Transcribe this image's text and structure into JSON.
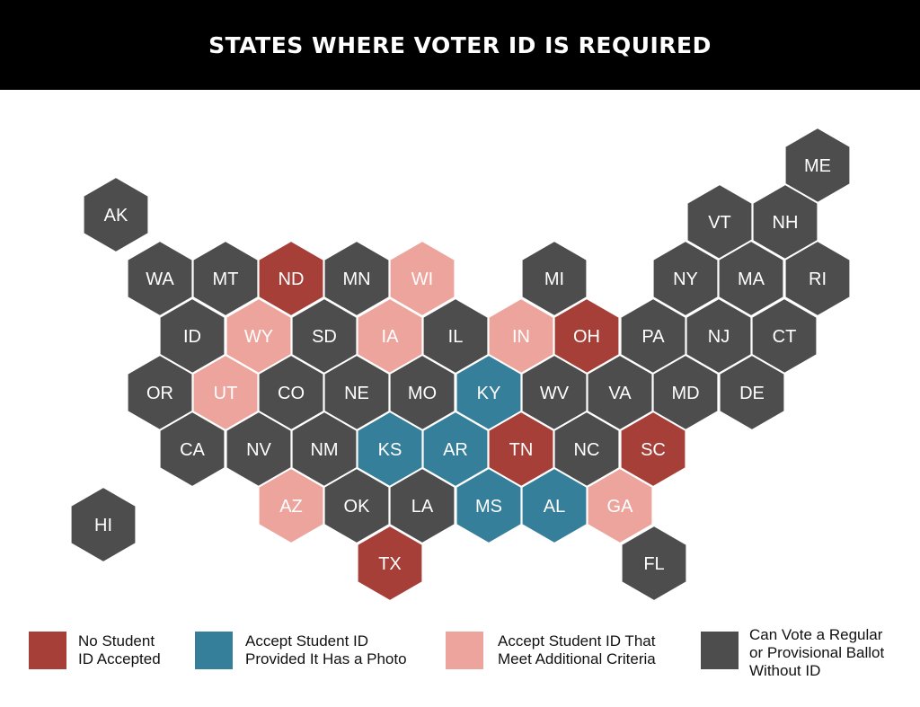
{
  "title": "STATES WHERE VOTER ID IS REQUIRED",
  "colors": {
    "no_student_id": "#a63f38",
    "student_id_photo": "#367f9a",
    "student_id_criteria": "#eda49c",
    "no_id_needed": "#4d4d4d",
    "header_bg": "#000000",
    "hex_border": "#ffffff"
  },
  "states": [
    {
      "code": "AK",
      "category": "no_id_needed"
    },
    {
      "code": "ME",
      "category": "no_id_needed"
    },
    {
      "code": "VT",
      "category": "no_id_needed"
    },
    {
      "code": "NH",
      "category": "no_id_needed"
    },
    {
      "code": "WA",
      "category": "no_id_needed"
    },
    {
      "code": "MT",
      "category": "no_id_needed"
    },
    {
      "code": "ND",
      "category": "no_student_id"
    },
    {
      "code": "MN",
      "category": "no_id_needed"
    },
    {
      "code": "WI",
      "category": "student_id_criteria"
    },
    {
      "code": "MI",
      "category": "no_id_needed"
    },
    {
      "code": "NY",
      "category": "no_id_needed"
    },
    {
      "code": "MA",
      "category": "no_id_needed"
    },
    {
      "code": "RI",
      "category": "no_id_needed"
    },
    {
      "code": "ID",
      "category": "no_id_needed"
    },
    {
      "code": "WY",
      "category": "student_id_criteria"
    },
    {
      "code": "SD",
      "category": "no_id_needed"
    },
    {
      "code": "IA",
      "category": "student_id_criteria"
    },
    {
      "code": "IL",
      "category": "no_id_needed"
    },
    {
      "code": "IN",
      "category": "student_id_criteria"
    },
    {
      "code": "OH",
      "category": "no_student_id"
    },
    {
      "code": "PA",
      "category": "no_id_needed"
    },
    {
      "code": "NJ",
      "category": "no_id_needed"
    },
    {
      "code": "CT",
      "category": "no_id_needed"
    },
    {
      "code": "OR",
      "category": "no_id_needed"
    },
    {
      "code": "UT",
      "category": "student_id_criteria"
    },
    {
      "code": "CO",
      "category": "no_id_needed"
    },
    {
      "code": "NE",
      "category": "no_id_needed"
    },
    {
      "code": "MO",
      "category": "no_id_needed"
    },
    {
      "code": "KY",
      "category": "student_id_photo"
    },
    {
      "code": "WV",
      "category": "no_id_needed"
    },
    {
      "code": "VA",
      "category": "no_id_needed"
    },
    {
      "code": "MD",
      "category": "no_id_needed"
    },
    {
      "code": "DE",
      "category": "no_id_needed"
    },
    {
      "code": "CA",
      "category": "no_id_needed"
    },
    {
      "code": "NV",
      "category": "no_id_needed"
    },
    {
      "code": "NM",
      "category": "no_id_needed"
    },
    {
      "code": "KS",
      "category": "student_id_photo"
    },
    {
      "code": "AR",
      "category": "student_id_photo"
    },
    {
      "code": "TN",
      "category": "no_student_id"
    },
    {
      "code": "NC",
      "category": "no_id_needed"
    },
    {
      "code": "SC",
      "category": "no_student_id"
    },
    {
      "code": "HI",
      "category": "no_id_needed"
    },
    {
      "code": "AZ",
      "category": "student_id_criteria"
    },
    {
      "code": "OK",
      "category": "no_id_needed"
    },
    {
      "code": "LA",
      "category": "no_id_needed"
    },
    {
      "code": "MS",
      "category": "student_id_photo"
    },
    {
      "code": "AL",
      "category": "student_id_photo"
    },
    {
      "code": "GA",
      "category": "student_id_criteria"
    },
    {
      "code": "TX",
      "category": "no_student_id"
    },
    {
      "code": "FL",
      "category": "no_id_needed"
    }
  ],
  "legend": [
    {
      "category": "no_student_id",
      "lines": [
        "No Student",
        "ID Accepted"
      ]
    },
    {
      "category": "student_id_photo",
      "lines": [
        "Accept Student ID",
        "Provided It Has a Photo"
      ]
    },
    {
      "category": "student_id_criteria",
      "lines": [
        "Accept Student ID That",
        "Meet Additional Criteria"
      ]
    },
    {
      "category": "no_id_needed",
      "lines": [
        "Can Vote a Regular",
        "or Provisional Ballot",
        "Without ID"
      ]
    }
  ]
}
